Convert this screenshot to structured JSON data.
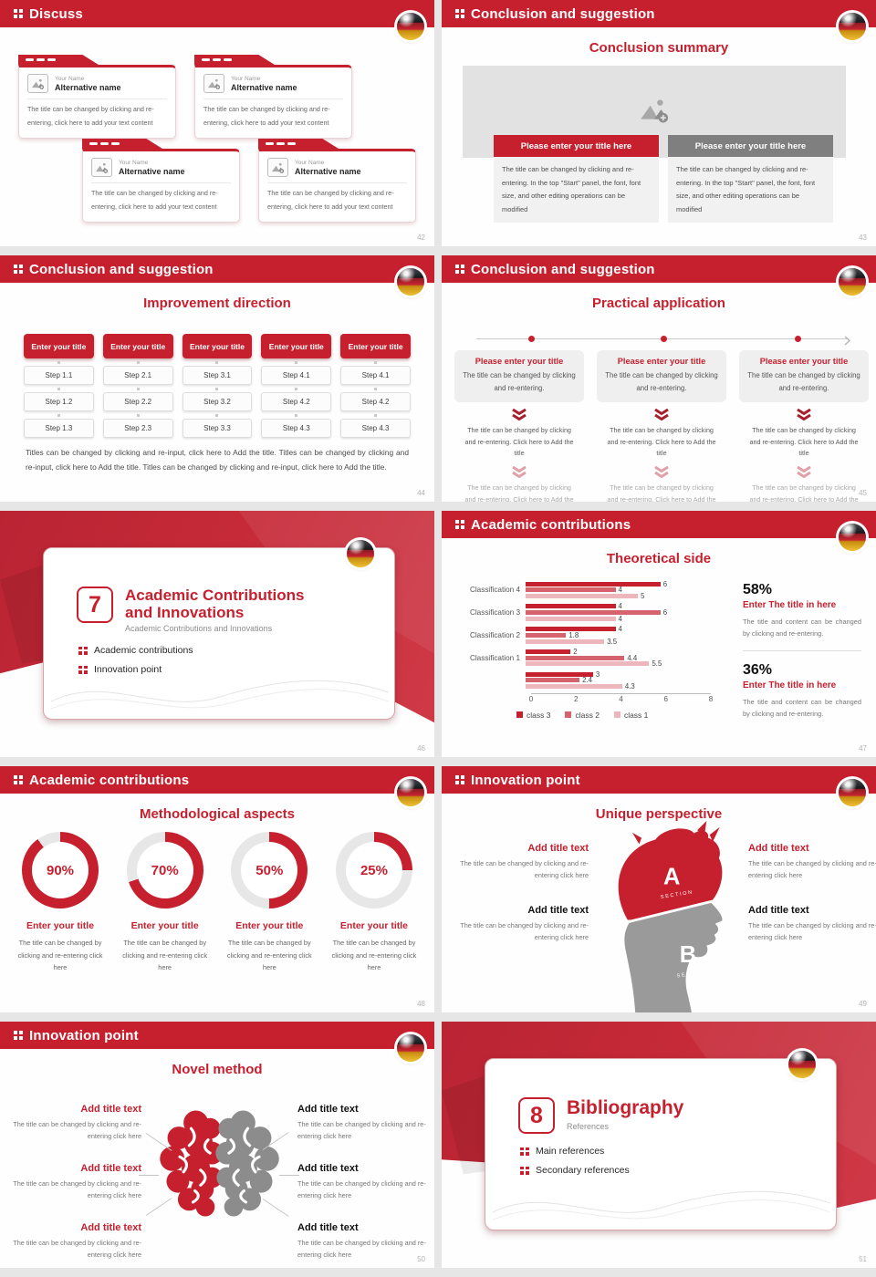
{
  "theme": {
    "accent": "#c6202e",
    "accent_dark": "#a81f2c",
    "chevron_light": "#dfa0a8",
    "gray_button": "#7f7f7f",
    "donut_track": "#e7e7e7",
    "head_gray": "#9a9a9a",
    "brain_gray": "#8c8c8c"
  },
  "chart_data": {
    "type": "bar",
    "orientation": "horizontal",
    "title": "Theoretical side",
    "categories": [
      "Classification 4",
      "Classification 3",
      "Classification 2",
      "Classification 1",
      ""
    ],
    "series": [
      {
        "name": "class 3",
        "values": [
          6,
          4,
          4,
          2,
          3
        ]
      },
      {
        "name": "class 2",
        "values": [
          4,
          6,
          1.8,
          4.4,
          2.4
        ]
      },
      {
        "name": "class 1",
        "values": [
          5,
          4,
          3.5,
          5.5,
          4.3
        ]
      }
    ],
    "colors": [
      "#c6202e",
      "#d5626d",
      "#ecb6bc"
    ],
    "xlim": [
      0,
      8
    ],
    "xticks": [
      0,
      2,
      4,
      6,
      8
    ],
    "grid": false,
    "legend_position": "bottom"
  },
  "slides": [
    {
      "header": "Discuss",
      "page": "42",
      "cards": [
        {
          "name_label": "Your Name",
          "alt_name": "Alternative name",
          "body": "The title can be changed by clicking and re-entering, click here to add your text content"
        },
        {
          "name_label": "Your Name",
          "alt_name": "Alternative name",
          "body": "The title can be changed by clicking and re-entering, click here to add your text content"
        },
        {
          "name_label": "Your Name",
          "alt_name": "Alternative name",
          "body": "The title can be changed by clicking and re-entering, click here to add your text content"
        },
        {
          "name_label": "Your Name",
          "alt_name": "Alternative name",
          "body": "The title can be changed by clicking and re-entering, click here to add your text content"
        }
      ]
    },
    {
      "header": "Conclusion and suggestion",
      "title": "Conclusion summary",
      "page": "43",
      "cols": [
        {
          "button": "Please enter your title here",
          "body": "The title can be changed by clicking and re-entering. In the top \"Start\" panel, the font, font size, and other editing operations can be modified"
        },
        {
          "button": "Please enter your title here",
          "body": "The title can be changed by clicking and re-entering. In the top \"Start\" panel, the font, font size, and other editing operations can be modified"
        }
      ]
    },
    {
      "header": "Conclusion and suggestion",
      "title": "Improvement direction",
      "page": "44",
      "button": "Enter your title",
      "columns": [
        [
          "Step 1.1",
          "Step 1.2",
          "Step 1.3"
        ],
        [
          "Step 2.1",
          "Step 2.2",
          "Step 2.3"
        ],
        [
          "Step 3.1",
          "Step 3.2",
          "Step 3.3"
        ],
        [
          "Step 4.1",
          "Step 4.2",
          "Step 4.3"
        ],
        [
          "Step 4.1",
          "Step 4.2",
          "Step 4.3"
        ]
      ],
      "footer": "Titles can be changed by clicking and re-input, click here to Add the title. Titles can be changed by clicking and re-input, click here to Add the title. Titles can be changed by clicking and re-input, click here to Add the title."
    },
    {
      "header": "Conclusion and suggestion",
      "title": "Practical application",
      "page": "45",
      "card_title": "Please enter your title",
      "card_body": "The title can be changed by clicking and re-entering.",
      "flow_text": "The title can be changed by clicking and re-entering. Click here to Add the title"
    },
    {
      "chapter_number": "7",
      "title": "Academic Contributions and Innovations",
      "subtitle": "Academic Contributions and Innovations",
      "bullets": [
        "Academic contributions",
        "Innovation point"
      ],
      "page": "46"
    },
    {
      "header": "Academic contributions",
      "title": "Theoretical side",
      "page": "47",
      "stats": [
        {
          "percent": "58%",
          "title": "Enter The title in here",
          "body": "The title and content can be changed by clicking and re-entering."
        },
        {
          "percent": "36%",
          "title": "Enter The title in here",
          "body": "The title and content can be changed by clicking and re-entering."
        }
      ]
    },
    {
      "header": "Academic contributions",
      "title": "Methodological aspects",
      "page": "48",
      "donut_title": "Enter your title",
      "donut_body": "The title can be changed by clicking and re-entering click here",
      "donuts": [
        {
          "pct": 90,
          "label": "90%"
        },
        {
          "pct": 70,
          "label": "70%"
        },
        {
          "pct": 50,
          "label": "50%"
        },
        {
          "pct": 25,
          "label": "25%"
        }
      ]
    },
    {
      "header": "Innovation point",
      "title": "Unique perspective",
      "page": "49",
      "section_a": "A",
      "section_b": "B",
      "section_label": "SECTION",
      "block_title": "Add title text",
      "block_body": "The title can be changed by clicking and re-entering click here"
    },
    {
      "header": "Innovation point",
      "title": "Novel method",
      "page": "50",
      "block_title": "Add title text",
      "block_body": "The title can be changed by clicking and re-entering click here"
    },
    {
      "chapter_number": "8",
      "title": "Bibliography",
      "subtitle": "References",
      "bullets": [
        "Main references",
        "Secondary references"
      ],
      "page": "51"
    }
  ]
}
